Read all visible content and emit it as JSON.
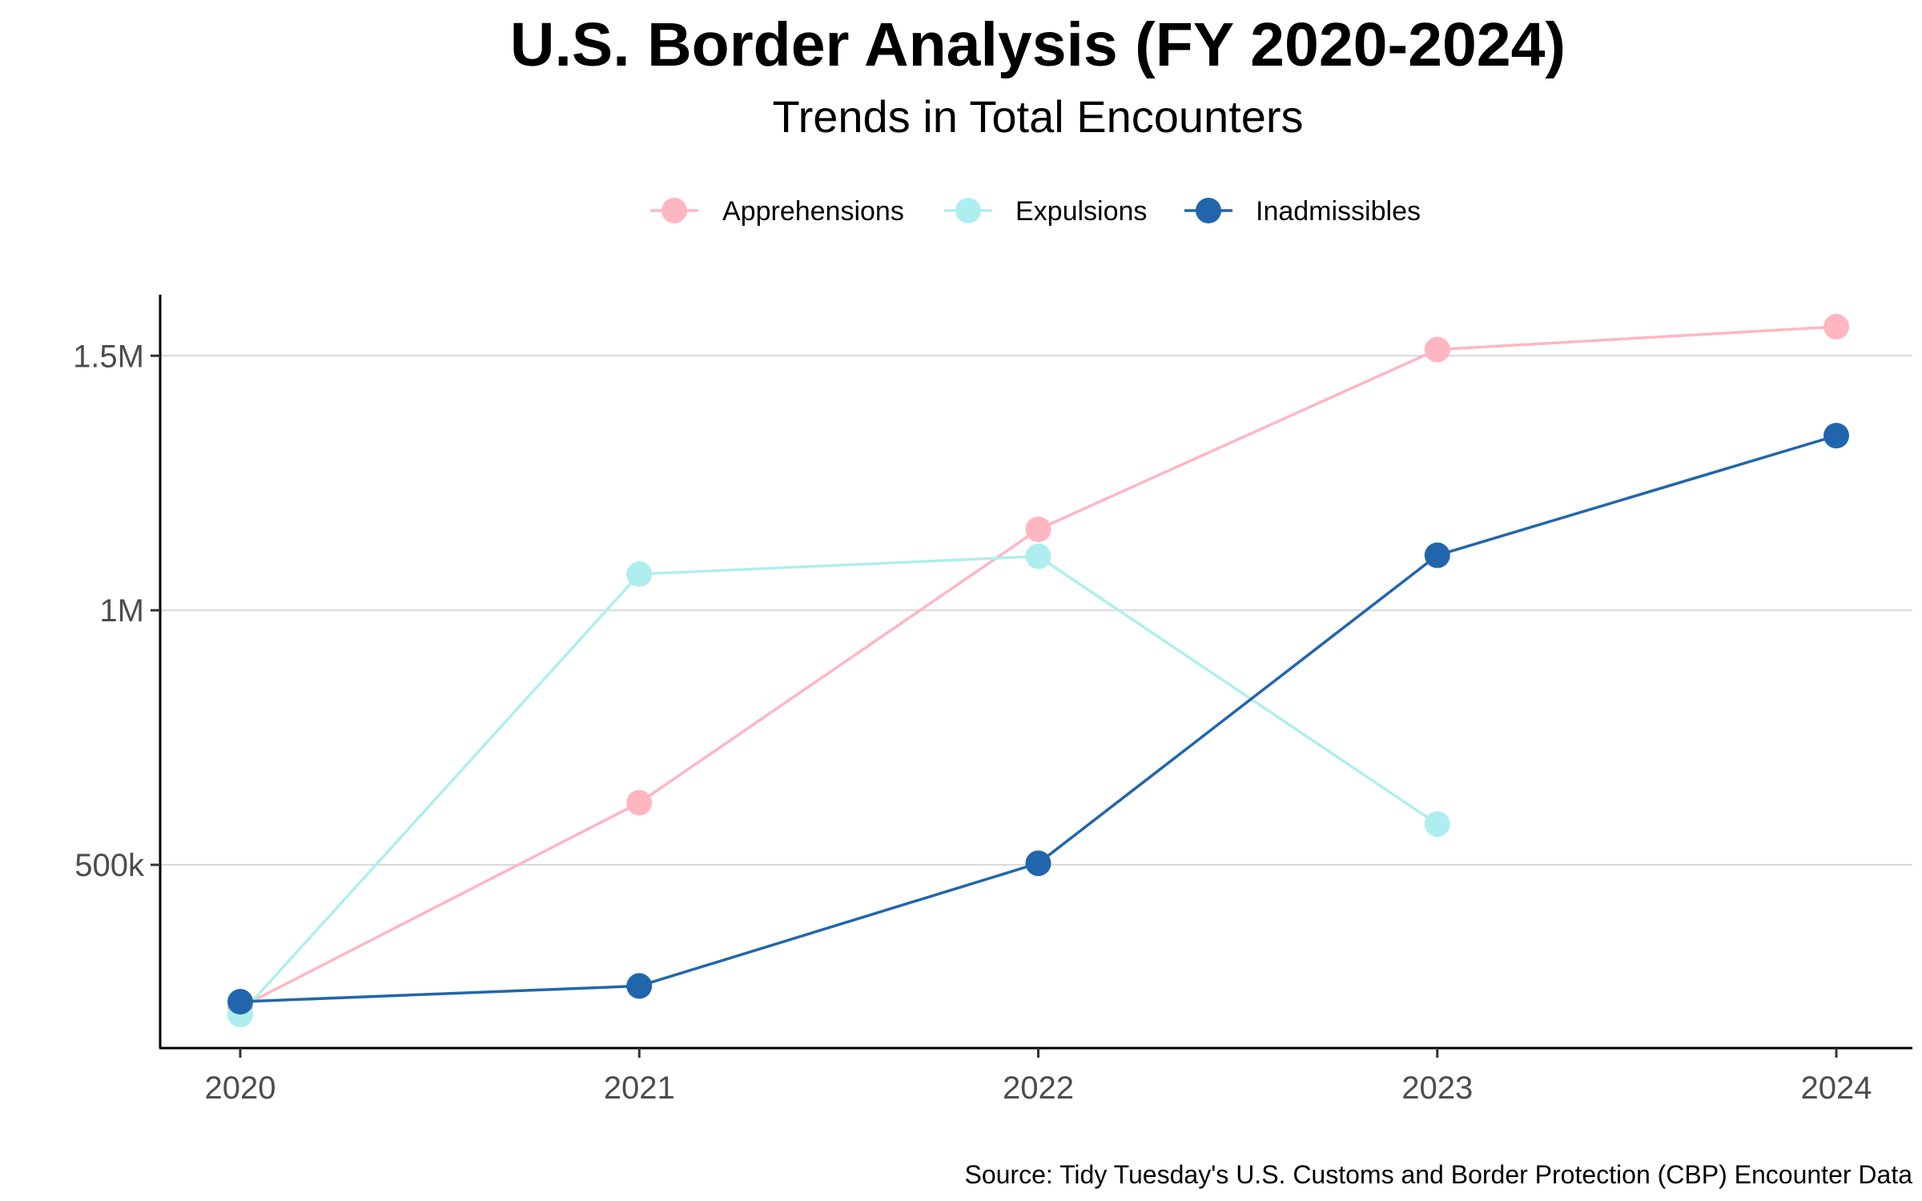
{
  "chart_data": {
    "type": "line",
    "title": "U.S. Border Analysis (FY 2020-2024)",
    "subtitle": "Trends in Total Encounters",
    "caption": "Source: Tidy Tuesday's U.S. Customs and Border Protection (CBP) Encounter Data",
    "xlabel": "",
    "ylabel": "",
    "x": [
      "2020",
      "2021",
      "2022",
      "2023",
      "2024"
    ],
    "ylim": [
      140000,
      1620000
    ],
    "y_ticks": [
      {
        "value": 500000,
        "label": "500k"
      },
      {
        "value": 1000000,
        "label": "1M"
      },
      {
        "value": 1500000,
        "label": "1.5M"
      }
    ],
    "grid": "horizontal-major",
    "legend_position": "top",
    "series": [
      {
        "name": "Apprehensions",
        "color": "#FFB6C1",
        "values": [
          220000,
          622000,
          1159000,
          1512000,
          1557000
        ]
      },
      {
        "name": "Expulsions",
        "color": "#AFEEEE",
        "values": [
          206000,
          1071000,
          1106000,
          580000,
          null
        ]
      },
      {
        "name": "Inadmissibles",
        "color": "#2166AC",
        "values": [
          231000,
          262000,
          503000,
          1108000,
          1343000
        ]
      }
    ]
  }
}
